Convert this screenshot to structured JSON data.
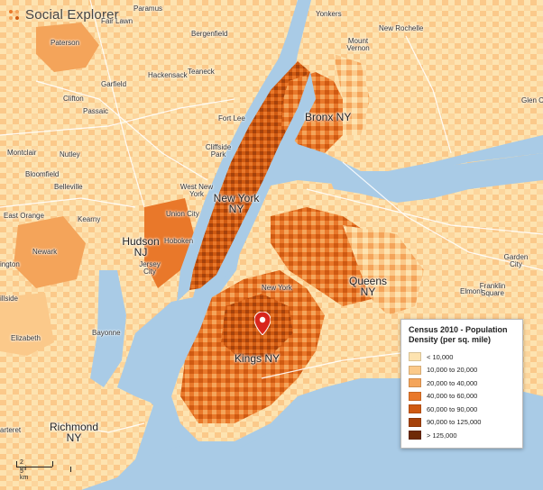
{
  "brand": {
    "name": "Social Explorer",
    "icon": "social-explorer-logo-icon"
  },
  "legend": {
    "title": "Census 2010 - Population Density (per sq. mile)",
    "items": [
      {
        "label": "< 10,000",
        "color": "#fde3b0"
      },
      {
        "label": "10,000 to 20,000",
        "color": "#fbc98a"
      },
      {
        "label": "20,000 to 40,000",
        "color": "#f4a45a"
      },
      {
        "label": "40,000 to 60,000",
        "color": "#e9782a"
      },
      {
        "label": "60,000 to 90,000",
        "color": "#cf5a12"
      },
      {
        "label": "90,000 to 125,000",
        "color": "#a6420b"
      },
      {
        "label": "> 125,000",
        "color": "#6e2a06"
      }
    ]
  },
  "scale": {
    "miles": "2 mi",
    "km": "5 km"
  },
  "colors": {
    "water": "#a9cbe6",
    "land": "#fde3b0",
    "road": "#ffffff"
  },
  "places": {
    "paramus": "Paramus",
    "fair_lawn": "Fair Lawn",
    "yonkers": "Yonkers",
    "paterson": "Paterson",
    "bergenfield": "Bergenfield",
    "new_rochelle": "New Rochelle",
    "mount_vernon": "Mount\nVernon",
    "garfield": "Garfield",
    "hackensack": "Hackensack",
    "teaneck": "Teaneck",
    "clifton": "Clifton",
    "passaic": "Passaic",
    "glen_cove": "Glen Co",
    "fort_lee": "Fort Lee",
    "bronx": "Bronx NY",
    "montclair": "Montclair",
    "nutley": "Nutley",
    "cliffside_park": "Cliffside\nPark",
    "bloomfield": "Bloomfield",
    "belleville": "Belleville",
    "west_new_york": "West New\nYork",
    "new_york_ny": "New York\nNY",
    "east_orange": "East Orange",
    "kearny": "Kearny",
    "union_city": "Union City",
    "hudson": "Hudson\nNJ",
    "hoboken": "Hoboken",
    "newark": "Newark",
    "jersey_city": "Jersey\nCity",
    "garden_city": "Garden\nCity",
    "ington": "ington",
    "new_york": "New York",
    "queens": "Queens\nNY",
    "elmont": "Elmont",
    "franklin_square": "Franklin\nSquare",
    "hillside": "illside",
    "elizabeth": "Elizabeth",
    "bayonne": "Bayonne",
    "kings": "Kings NY",
    "richmond": "Richmond\nNY",
    "carteret": "arteret"
  }
}
